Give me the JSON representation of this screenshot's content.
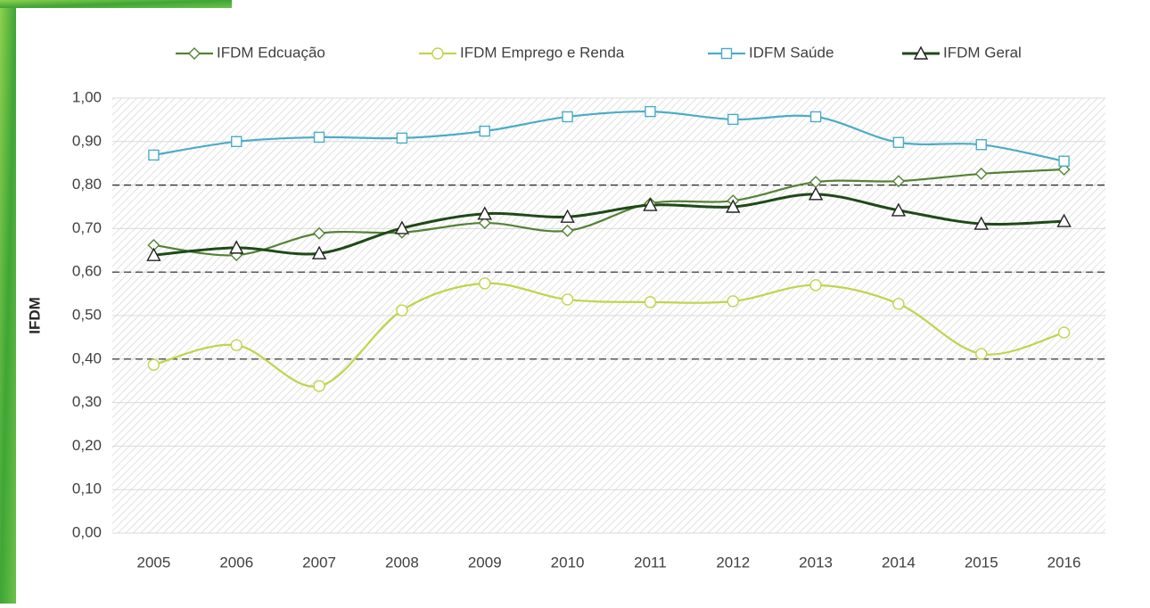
{
  "chart_data": {
    "type": "line",
    "y_label": "IFDM",
    "categories": [
      "2005",
      "2006",
      "2007",
      "2008",
      "2009",
      "2010",
      "2011",
      "2012",
      "2013",
      "2014",
      "2015",
      "2016"
    ],
    "series": [
      {
        "name": "IFDM Edcuação",
        "color": "#548235",
        "marker": "diamond",
        "values": [
          0.662,
          0.639,
          0.689,
          0.691,
          0.713,
          0.695,
          0.758,
          0.764,
          0.807,
          0.809,
          0.826,
          0.836
        ]
      },
      {
        "name": "IFDM Emprego e Renda",
        "color": "#c2d34a",
        "marker": "circle",
        "values": [
          0.387,
          0.432,
          0.338,
          0.512,
          0.574,
          0.537,
          0.531,
          0.533,
          0.57,
          0.527,
          0.412,
          0.461
        ]
      },
      {
        "name": "IDFM Saúde",
        "color": "#4bacc6",
        "marker": "square",
        "values": [
          0.869,
          0.9,
          0.91,
          0.908,
          0.924,
          0.957,
          0.969,
          0.951,
          0.957,
          0.898,
          0.893,
          0.855
        ]
      },
      {
        "name": "IFDM Geral",
        "color": "#1e4a17",
        "marker": "triangle",
        "values": [
          0.639,
          0.656,
          0.643,
          0.701,
          0.734,
          0.727,
          0.754,
          0.75,
          0.779,
          0.742,
          0.711,
          0.717
        ]
      }
    ],
    "ylim": [
      0,
      1
    ],
    "yticks": [
      {
        "value": 0,
        "label": "0,00"
      },
      {
        "value": 0.1,
        "label": "0,10"
      },
      {
        "value": 0.2,
        "label": "0,20"
      },
      {
        "value": 0.3,
        "label": "0,30"
      },
      {
        "value": 0.4,
        "label": "0,40"
      },
      {
        "value": 0.5,
        "label": "0,50"
      },
      {
        "value": 0.6,
        "label": "0,60"
      },
      {
        "value": 0.7,
        "label": "0,70"
      },
      {
        "value": 0.8,
        "label": "0,80"
      },
      {
        "value": 0.9,
        "label": "0,90"
      },
      {
        "value": 1,
        "label": "1,00"
      }
    ],
    "reference_lines": [
      0.4,
      0.6,
      0.8
    ],
    "grid": true,
    "legend": "top"
  }
}
